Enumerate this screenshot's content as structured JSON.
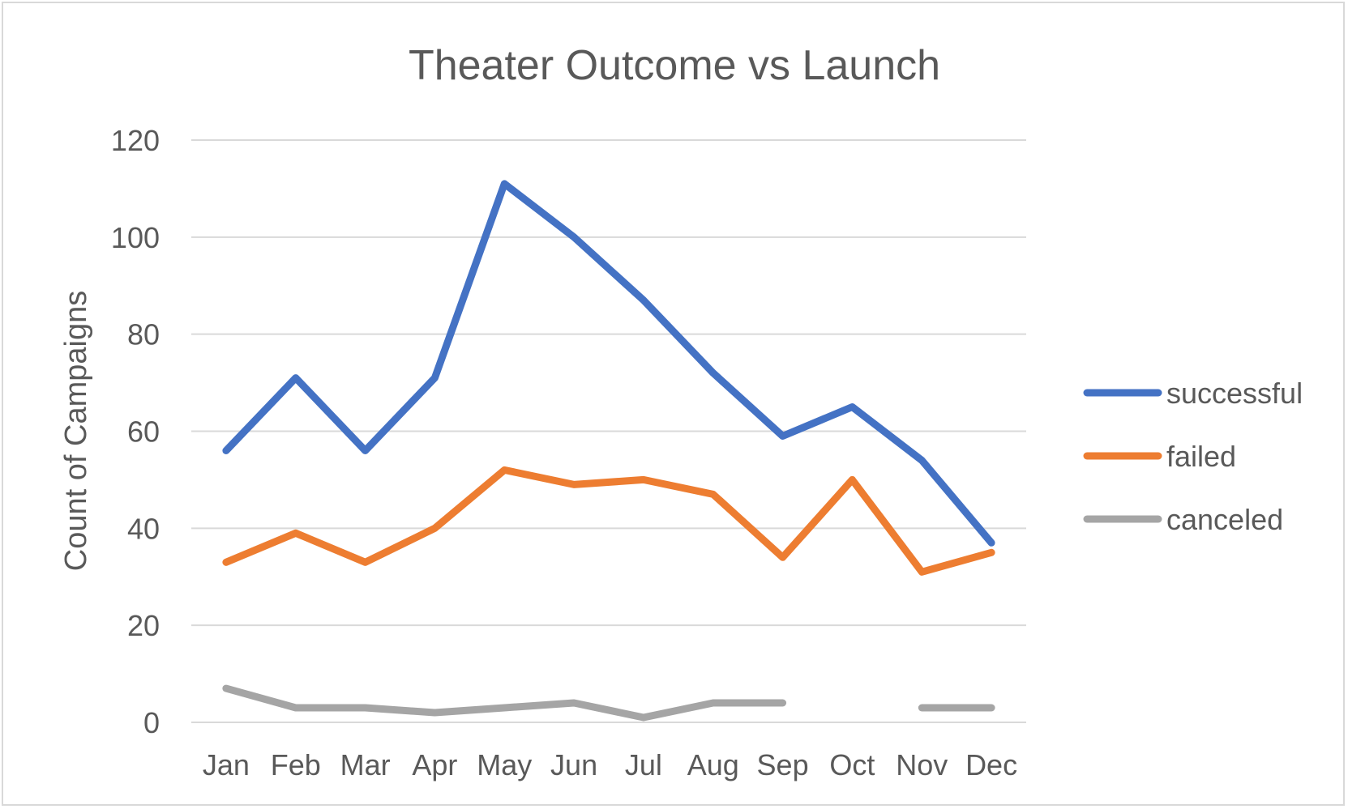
{
  "chart_data": {
    "type": "line",
    "title": "Theater Outcome vs Launch",
    "xlabel": "",
    "ylabel": "Count of Campaigns",
    "categories": [
      "Jan",
      "Feb",
      "Mar",
      "Apr",
      "May",
      "Jun",
      "Jul",
      "Aug",
      "Sep",
      "Oct",
      "Nov",
      "Dec"
    ],
    "ylim": [
      0,
      120
    ],
    "yticks": [
      0,
      20,
      40,
      60,
      80,
      100,
      120
    ],
    "grid": true,
    "legend_position": "right",
    "series": [
      {
        "name": "successful",
        "color": "#4472C4",
        "values": [
          56,
          71,
          56,
          71,
          111,
          100,
          87,
          72,
          59,
          65,
          54,
          37
        ]
      },
      {
        "name": "failed",
        "color": "#ED7D31",
        "values": [
          33,
          39,
          33,
          40,
          52,
          49,
          50,
          47,
          34,
          50,
          31,
          35
        ]
      },
      {
        "name": "canceled",
        "color": "#A5A5A5",
        "values": [
          7,
          3,
          3,
          2,
          3,
          4,
          1,
          4,
          4,
          null,
          3,
          3
        ]
      }
    ]
  }
}
